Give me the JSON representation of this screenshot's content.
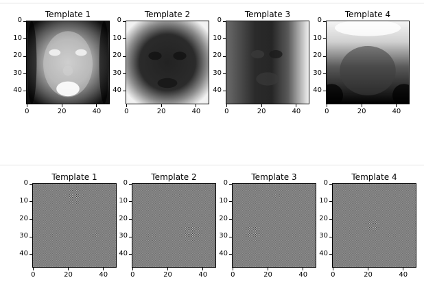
{
  "rows": [
    {
      "kind": "faces",
      "panels": [
        {
          "title": "Template 1"
        },
        {
          "title": "Template 2"
        },
        {
          "title": "Template 3"
        },
        {
          "title": "Template 4"
        }
      ]
    },
    {
      "kind": "checker",
      "panels": [
        {
          "title": "Template 1"
        },
        {
          "title": "Template 2"
        },
        {
          "title": "Template 3"
        },
        {
          "title": "Template 4"
        }
      ]
    }
  ],
  "axis": {
    "xticks": [
      "0",
      "20",
      "40"
    ],
    "yticks": [
      "0",
      "10",
      "20",
      "30",
      "40"
    ],
    "range": [
      0,
      47
    ]
  },
  "colors": {
    "background": "#ffffff",
    "divider": "#e3e3e3",
    "checker_gray": "#808080"
  }
}
